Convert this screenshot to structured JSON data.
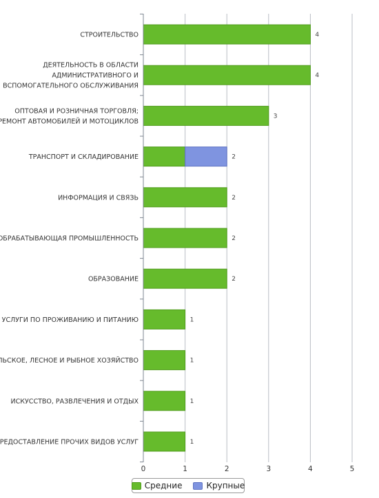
{
  "colors": {
    "series_0": "#66bb2c",
    "series_0_stroke": "#4f9b1c",
    "series_1": "#7f94e0",
    "series_1_stroke": "#5e73c2",
    "grid": "#b9bdc4",
    "axis": "#7d8590"
  },
  "chart_data": {
    "type": "bar",
    "orientation": "horizontal",
    "stacked": true,
    "categories": [
      [
        "СТРОИТЕЛЬСТВО"
      ],
      [
        "ДЕЯТЕЛЬНОСТЬ В ОБЛАСТИ",
        "АДМИНИСТРАТИВНОГО И",
        "ВСПОМОГАТЕЛЬНОГО ОБСЛУЖИВАНИЯ"
      ],
      [
        "ОПТОВАЯ И РОЗНИЧНАЯ ТОРГОВЛЯ;",
        "РЕМОНТ АВТОМОБИЛЕЙ И МОТОЦИКЛОВ"
      ],
      [
        "ТРАНСПОРТ И СКЛАДИРОВАНИЕ"
      ],
      [
        "ИНФОРМАЦИЯ И СВЯЗЬ"
      ],
      [
        "ОБРАБАТЫВАЮЩАЯ ПРОМЫШЛЕННОСТЬ"
      ],
      [
        "ОБРАЗОВАНИЕ"
      ],
      [
        "УСЛУГИ ПО ПРОЖИВАНИЮ И ПИТАНИЮ"
      ],
      [
        "СЕЛЬСКОЕ, ЛЕСНОЕ И РЫБНОЕ ХОЗЯЙСТВО"
      ],
      [
        "ИСКУССТВО, РАЗВЛЕЧЕНИЯ И ОТДЫХ"
      ],
      [
        "ПРЕДОСТАВЛЕНИЕ ПРОЧИХ ВИДОВ УСЛУГ"
      ]
    ],
    "series": [
      {
        "name": "Средние",
        "values": [
          4,
          4,
          3,
          1,
          2,
          2,
          2,
          1,
          1,
          1,
          1
        ]
      },
      {
        "name": "Крупные",
        "values": [
          0,
          0,
          0,
          1,
          0,
          0,
          0,
          0,
          0,
          0,
          0
        ]
      }
    ],
    "totals": [
      "4",
      "4",
      "3",
      "2",
      "2",
      "2",
      "2",
      "1",
      "1",
      "1",
      "1"
    ],
    "xlim": [
      0,
      5
    ],
    "xticks": [
      "0",
      "1",
      "2",
      "3",
      "4",
      "5"
    ],
    "grid": true,
    "legend_position": "bottom-center"
  }
}
